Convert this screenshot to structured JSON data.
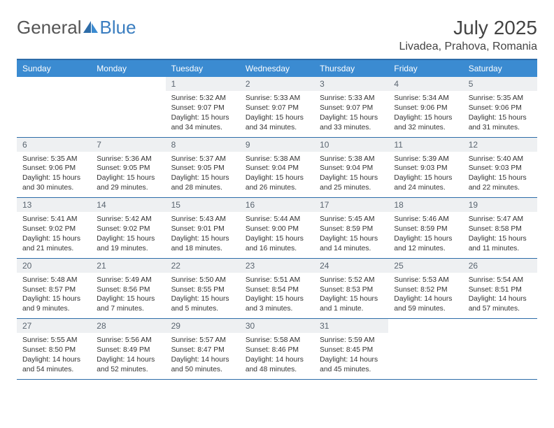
{
  "logo": {
    "text1": "General",
    "text2": "Blue"
  },
  "title": "July 2025",
  "location": "Livadea, Prahova, Romania",
  "colors": {
    "header_bar": "#3b8bd1",
    "rule": "#2d6ca8",
    "daynum_bg": "#eef0f2",
    "daynum_fg": "#5a6570",
    "text": "#333333",
    "logo_blue": "#3b7ec0"
  },
  "weekdays": [
    "Sunday",
    "Monday",
    "Tuesday",
    "Wednesday",
    "Thursday",
    "Friday",
    "Saturday"
  ],
  "weeks": [
    [
      null,
      null,
      {
        "n": "1",
        "sunrise": "5:32 AM",
        "sunset": "9:07 PM",
        "dl": "15 hours and 34 minutes."
      },
      {
        "n": "2",
        "sunrise": "5:33 AM",
        "sunset": "9:07 PM",
        "dl": "15 hours and 34 minutes."
      },
      {
        "n": "3",
        "sunrise": "5:33 AM",
        "sunset": "9:07 PM",
        "dl": "15 hours and 33 minutes."
      },
      {
        "n": "4",
        "sunrise": "5:34 AM",
        "sunset": "9:06 PM",
        "dl": "15 hours and 32 minutes."
      },
      {
        "n": "5",
        "sunrise": "5:35 AM",
        "sunset": "9:06 PM",
        "dl": "15 hours and 31 minutes."
      }
    ],
    [
      {
        "n": "6",
        "sunrise": "5:35 AM",
        "sunset": "9:06 PM",
        "dl": "15 hours and 30 minutes."
      },
      {
        "n": "7",
        "sunrise": "5:36 AM",
        "sunset": "9:05 PM",
        "dl": "15 hours and 29 minutes."
      },
      {
        "n": "8",
        "sunrise": "5:37 AM",
        "sunset": "9:05 PM",
        "dl": "15 hours and 28 minutes."
      },
      {
        "n": "9",
        "sunrise": "5:38 AM",
        "sunset": "9:04 PM",
        "dl": "15 hours and 26 minutes."
      },
      {
        "n": "10",
        "sunrise": "5:38 AM",
        "sunset": "9:04 PM",
        "dl": "15 hours and 25 minutes."
      },
      {
        "n": "11",
        "sunrise": "5:39 AM",
        "sunset": "9:03 PM",
        "dl": "15 hours and 24 minutes."
      },
      {
        "n": "12",
        "sunrise": "5:40 AM",
        "sunset": "9:03 PM",
        "dl": "15 hours and 22 minutes."
      }
    ],
    [
      {
        "n": "13",
        "sunrise": "5:41 AM",
        "sunset": "9:02 PM",
        "dl": "15 hours and 21 minutes."
      },
      {
        "n": "14",
        "sunrise": "5:42 AM",
        "sunset": "9:02 PM",
        "dl": "15 hours and 19 minutes."
      },
      {
        "n": "15",
        "sunrise": "5:43 AM",
        "sunset": "9:01 PM",
        "dl": "15 hours and 18 minutes."
      },
      {
        "n": "16",
        "sunrise": "5:44 AM",
        "sunset": "9:00 PM",
        "dl": "15 hours and 16 minutes."
      },
      {
        "n": "17",
        "sunrise": "5:45 AM",
        "sunset": "8:59 PM",
        "dl": "15 hours and 14 minutes."
      },
      {
        "n": "18",
        "sunrise": "5:46 AM",
        "sunset": "8:59 PM",
        "dl": "15 hours and 12 minutes."
      },
      {
        "n": "19",
        "sunrise": "5:47 AM",
        "sunset": "8:58 PM",
        "dl": "15 hours and 11 minutes."
      }
    ],
    [
      {
        "n": "20",
        "sunrise": "5:48 AM",
        "sunset": "8:57 PM",
        "dl": "15 hours and 9 minutes."
      },
      {
        "n": "21",
        "sunrise": "5:49 AM",
        "sunset": "8:56 PM",
        "dl": "15 hours and 7 minutes."
      },
      {
        "n": "22",
        "sunrise": "5:50 AM",
        "sunset": "8:55 PM",
        "dl": "15 hours and 5 minutes."
      },
      {
        "n": "23",
        "sunrise": "5:51 AM",
        "sunset": "8:54 PM",
        "dl": "15 hours and 3 minutes."
      },
      {
        "n": "24",
        "sunrise": "5:52 AM",
        "sunset": "8:53 PM",
        "dl": "15 hours and 1 minute."
      },
      {
        "n": "25",
        "sunrise": "5:53 AM",
        "sunset": "8:52 PM",
        "dl": "14 hours and 59 minutes."
      },
      {
        "n": "26",
        "sunrise": "5:54 AM",
        "sunset": "8:51 PM",
        "dl": "14 hours and 57 minutes."
      }
    ],
    [
      {
        "n": "27",
        "sunrise": "5:55 AM",
        "sunset": "8:50 PM",
        "dl": "14 hours and 54 minutes."
      },
      {
        "n": "28",
        "sunrise": "5:56 AM",
        "sunset": "8:49 PM",
        "dl": "14 hours and 52 minutes."
      },
      {
        "n": "29",
        "sunrise": "5:57 AM",
        "sunset": "8:47 PM",
        "dl": "14 hours and 50 minutes."
      },
      {
        "n": "30",
        "sunrise": "5:58 AM",
        "sunset": "8:46 PM",
        "dl": "14 hours and 48 minutes."
      },
      {
        "n": "31",
        "sunrise": "5:59 AM",
        "sunset": "8:45 PM",
        "dl": "14 hours and 45 minutes."
      },
      null,
      null
    ]
  ],
  "labels": {
    "sunrise": "Sunrise:",
    "sunset": "Sunset:",
    "daylight": "Daylight:"
  }
}
